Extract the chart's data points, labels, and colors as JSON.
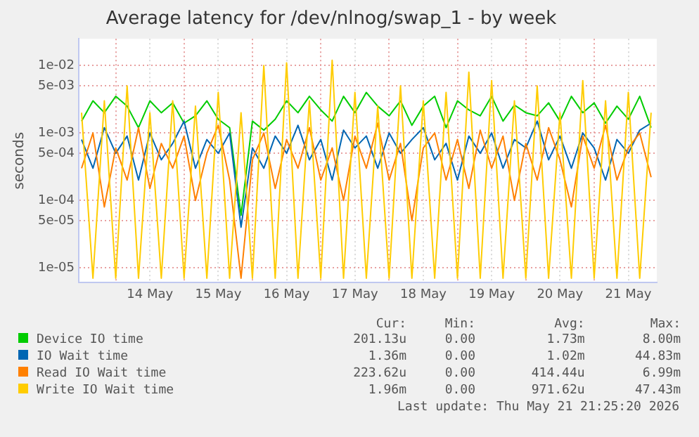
{
  "chart_data": {
    "type": "line",
    "title": "Average latency for /dev/nlnog/swap_1 - by week",
    "ylabel": "seconds",
    "log": "y",
    "grid": true,
    "legend": "bottom",
    "marker": "none",
    "line_style": "solid",
    "xlim": [
      "2026-05-13T11:00",
      "2026-05-21T22:00"
    ],
    "xticks": [
      {
        "value": "2026-05-14",
        "label": null
      },
      {
        "value": "2026-05-14T12:00",
        "label": "14 May"
      },
      {
        "value": "2026-05-15",
        "label": null
      },
      {
        "value": "2026-05-15T12:00",
        "label": "15 May"
      },
      {
        "value": "2026-05-16",
        "label": null
      },
      {
        "value": "2026-05-16T12:00",
        "label": "16 May"
      },
      {
        "value": "2026-05-17",
        "label": null
      },
      {
        "value": "2026-05-17T12:00",
        "label": "17 May"
      },
      {
        "value": "2026-05-18",
        "label": null
      },
      {
        "value": "2026-05-18T12:00",
        "label": "18 May"
      },
      {
        "value": "2026-05-19",
        "label": null
      },
      {
        "value": "2026-05-19T12:00",
        "label": "19 May"
      },
      {
        "value": "2026-05-20",
        "label": null
      },
      {
        "value": "2026-05-20T12:00",
        "label": "20 May"
      },
      {
        "value": "2026-05-21",
        "label": null
      },
      {
        "value": "2026-05-21T12:00",
        "label": "21 May"
      }
    ],
    "ylim": [
      6e-06,
      0.025
    ],
    "yticks": [
      {
        "value": 1e-05,
        "label": "1e-05"
      },
      {
        "value": 5e-05,
        "label": "5e-05"
      },
      {
        "value": 0.0001,
        "label": "1e-04"
      },
      {
        "value": 0.0005,
        "label": "5e-04"
      },
      {
        "value": 0.001,
        "label": "1e-03"
      },
      {
        "value": 0.005,
        "label": "5e-03"
      },
      {
        "value": 0.01,
        "label": "1e-02"
      }
    ],
    "x": [
      "2026-05-13T12:00",
      "2026-05-13T16:00",
      "2026-05-13T20:00",
      "2026-05-14T00:00",
      "2026-05-14T04:00",
      "2026-05-14T08:00",
      "2026-05-14T12:00",
      "2026-05-14T16:00",
      "2026-05-14T20:00",
      "2026-05-15T00:00",
      "2026-05-15T04:00",
      "2026-05-15T08:00",
      "2026-05-15T12:00",
      "2026-05-15T16:00",
      "2026-05-15T20:00",
      "2026-05-16T00:00",
      "2026-05-16T04:00",
      "2026-05-16T08:00",
      "2026-05-16T12:00",
      "2026-05-16T16:00",
      "2026-05-16T20:00",
      "2026-05-17T00:00",
      "2026-05-17T04:00",
      "2026-05-17T08:00",
      "2026-05-17T12:00",
      "2026-05-17T16:00",
      "2026-05-17T20:00",
      "2026-05-18T00:00",
      "2026-05-18T04:00",
      "2026-05-18T08:00",
      "2026-05-18T12:00",
      "2026-05-18T16:00",
      "2026-05-18T20:00",
      "2026-05-19T00:00",
      "2026-05-19T04:00",
      "2026-05-19T08:00",
      "2026-05-19T12:00",
      "2026-05-19T16:00",
      "2026-05-19T20:00",
      "2026-05-20T00:00",
      "2026-05-20T04:00",
      "2026-05-20T08:00",
      "2026-05-20T12:00",
      "2026-05-20T16:00",
      "2026-05-20T20:00",
      "2026-05-21T00:00",
      "2026-05-21T04:00",
      "2026-05-21T08:00",
      "2026-05-21T12:00",
      "2026-05-21T16:00",
      "2026-05-21T20:00"
    ],
    "series": [
      {
        "name": "Write IO Wait time",
        "color": "#ffcc00",
        "values": [
          0.002,
          7e-06,
          0.003,
          7e-06,
          0.005,
          7e-06,
          0.002,
          7e-06,
          0.003,
          7e-06,
          0.0025,
          7e-06,
          0.004,
          7e-06,
          0.002,
          7e-06,
          0.01,
          7e-06,
          0.011,
          7e-06,
          0.003,
          7e-06,
          0.012,
          7e-06,
          0.004,
          7e-06,
          0.0025,
          7e-06,
          0.005,
          7e-06,
          0.003,
          7e-06,
          0.004,
          7e-06,
          0.008,
          7e-06,
          0.006,
          7e-06,
          0.003,
          7e-06,
          0.005,
          7e-06,
          0.002,
          7e-06,
          0.006,
          7e-06,
          0.003,
          7e-06,
          0.004,
          7e-06,
          0.002
        ]
      },
      {
        "name": "Read IO Wait time",
        "color": "#ff8000",
        "values": [
          0.0003,
          0.001,
          8e-05,
          0.0006,
          0.0002,
          0.0012,
          0.00015,
          0.0007,
          0.0003,
          0.0009,
          0.0001,
          0.0005,
          0.0013,
          0.0002,
          7e-06,
          0.0004,
          0.001,
          0.00015,
          0.0008,
          0.0003,
          0.0012,
          0.0002,
          0.0006,
          0.0001,
          0.0009,
          0.0003,
          0.0014,
          0.0002,
          0.0007,
          5e-05,
          0.0006,
          0.001,
          0.0002,
          0.0008,
          0.00015,
          0.0011,
          0.0003,
          0.0009,
          0.0001,
          0.0007,
          0.0002,
          0.0012,
          0.0004,
          8e-05,
          0.0009,
          0.0003,
          0.0013,
          0.0002,
          0.0006,
          0.001,
          0.00022
        ]
      },
      {
        "name": "IO Wait time",
        "color": "#0066b3",
        "values": [
          0.0008,
          0.0003,
          0.0012,
          0.0005,
          0.0009,
          0.0002,
          0.001,
          0.0004,
          0.0007,
          0.0015,
          0.0003,
          0.0008,
          0.0005,
          0.001,
          4e-05,
          0.0006,
          0.0003,
          0.0009,
          0.0005,
          0.0013,
          0.0004,
          0.0008,
          0.0002,
          0.0011,
          0.0006,
          0.0009,
          0.0003,
          0.001,
          0.0005,
          0.0008,
          0.0012,
          0.0004,
          0.0007,
          0.0002,
          0.0009,
          0.0005,
          0.001,
          0.0003,
          0.0008,
          0.0006,
          0.0015,
          0.0004,
          0.0009,
          0.0003,
          0.001,
          0.0006,
          0.0002,
          0.0008,
          0.0005,
          0.0011,
          0.0014
        ]
      },
      {
        "name": "Device IO time",
        "color": "#00cc00",
        "values": [
          0.0015,
          0.003,
          0.002,
          0.0035,
          0.0025,
          0.0012,
          0.003,
          0.002,
          0.0028,
          0.0014,
          0.0018,
          0.003,
          0.0016,
          0.0012,
          6e-05,
          0.0015,
          0.0011,
          0.0016,
          0.003,
          0.002,
          0.0035,
          0.0022,
          0.0015,
          0.0035,
          0.002,
          0.004,
          0.0025,
          0.0018,
          0.003,
          0.0013,
          0.0025,
          0.0035,
          0.0012,
          0.003,
          0.0022,
          0.0018,
          0.0035,
          0.0015,
          0.0026,
          0.002,
          0.0018,
          0.0028,
          0.0015,
          0.0035,
          0.002,
          0.0028,
          0.0014,
          0.0025,
          0.0016,
          0.0035,
          0.0012
        ]
      }
    ],
    "annotations": [
      "Cur:",
      "Min:",
      "Avg:",
      "Max:",
      "1.96m",
      "0.00",
      "971.62u",
      "47.43m",
      "223.62u",
      "0.00",
      "414.44u",
      "6.99m",
      "1.36m",
      "0.00",
      "1.02m",
      "44.83m",
      "201.13u",
      "0.00",
      "1.73m",
      "8.00m",
      "Last update: Thu May 21 21:25:20 2026"
    ]
  }
}
